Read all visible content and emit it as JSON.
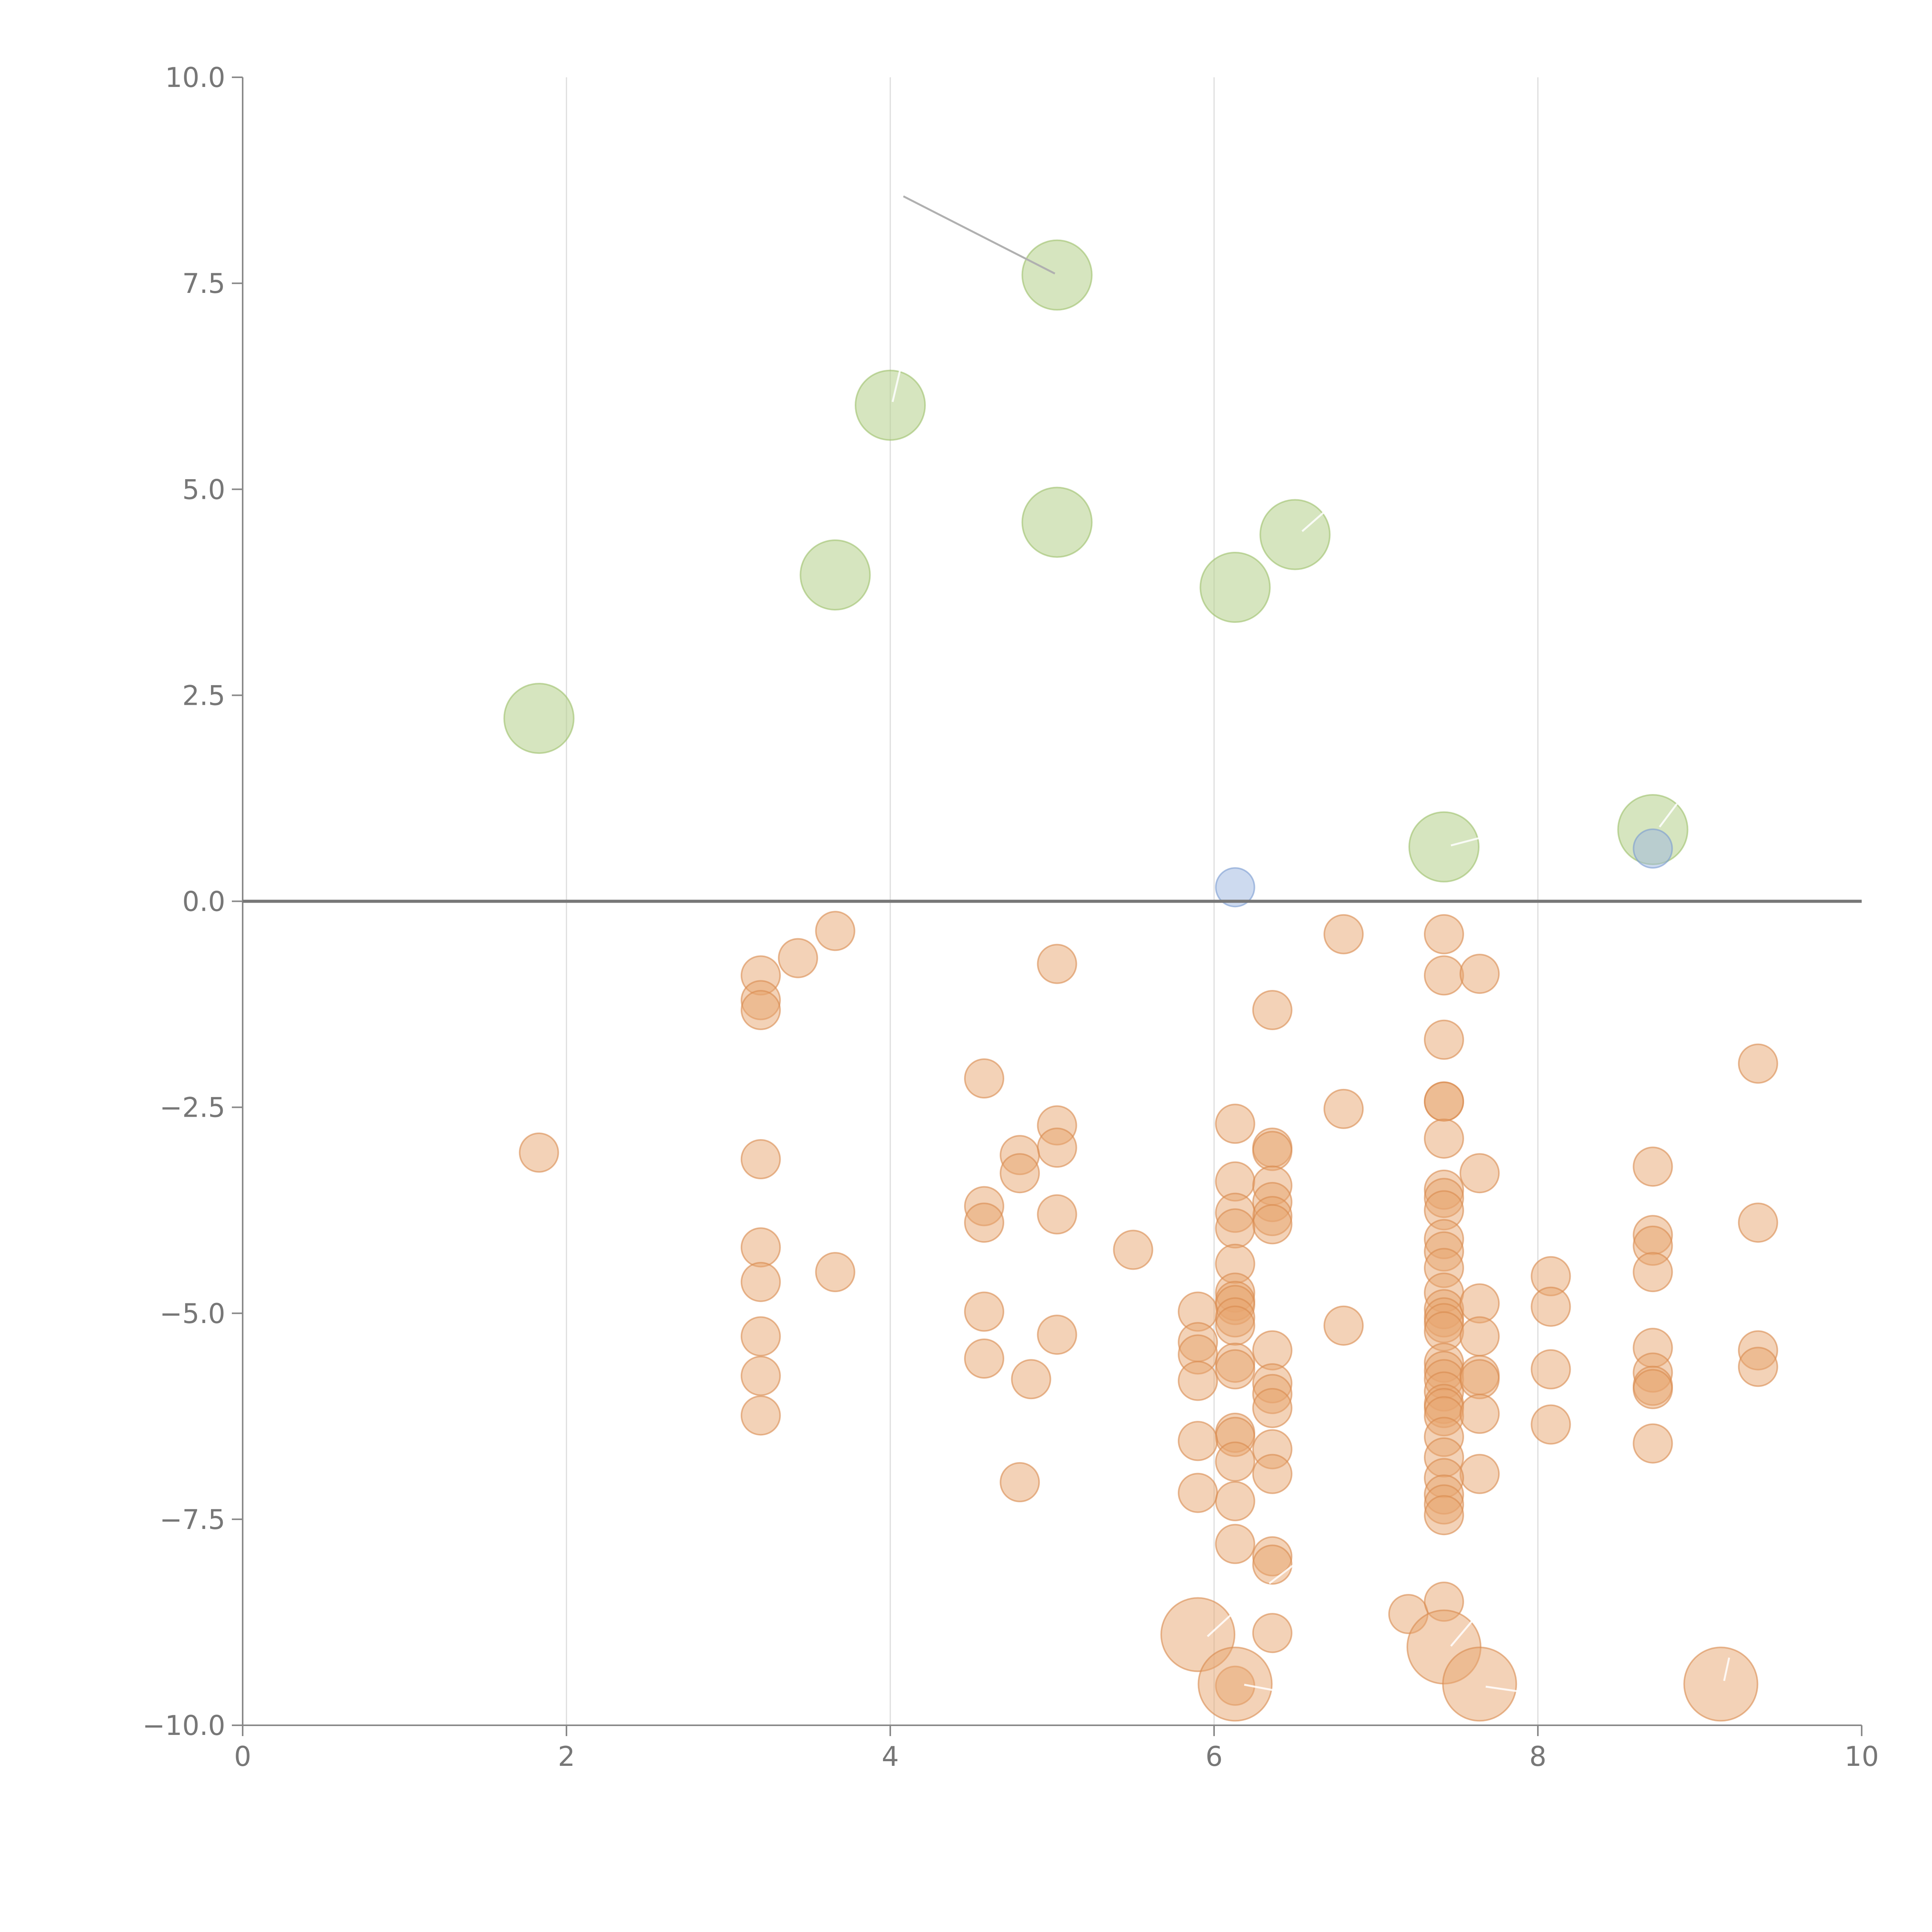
{
  "chart_data": {
    "type": "scatter",
    "title": "",
    "xlabel": "",
    "ylabel": "",
    "xlim": [
      0,
      10
    ],
    "ylim": [
      -10,
      10
    ],
    "grid": "vertical",
    "x_ticks": [
      0,
      2,
      4,
      6,
      8,
      10
    ],
    "x_tick_labels": [
      "0",
      "2",
      "4",
      "6",
      "8",
      "10"
    ],
    "y_ticks": [
      10,
      7.5,
      5,
      2.5,
      0,
      -2.5,
      -5,
      -7.5,
      -10
    ],
    "y_tick_labels": [
      "10.0",
      "7.5",
      "5.0",
      "2.5",
      "0.0",
      "−2.5",
      "−5.0",
      "−7.5",
      "−10.0"
    ],
    "series": [
      {
        "name": "green",
        "color": "#b5d08a",
        "stroke": "#9cc06a",
        "points": [
          [
            5.03,
            7.6,
            2
          ],
          [
            4.0,
            6.02,
            2
          ],
          [
            5.03,
            4.6,
            2
          ],
          [
            3.66,
            3.96,
            2
          ],
          [
            6.13,
            3.81,
            2
          ],
          [
            6.5,
            4.45,
            2
          ],
          [
            1.83,
            2.22,
            2
          ],
          [
            7.42,
            0.66,
            2
          ],
          [
            8.71,
            0.87,
            2
          ]
        ]
      },
      {
        "name": "blue",
        "color": "#9bb5df",
        "stroke": "#7a9bd0",
        "points": [
          [
            6.13,
            0.17,
            1
          ],
          [
            8.71,
            0.64,
            1
          ]
        ]
      },
      {
        "name": "orange",
        "color": "#e8a570",
        "stroke": "#d98a4e",
        "points": [
          [
            3.66,
            -0.36,
            1
          ],
          [
            3.43,
            -0.69,
            1
          ],
          [
            3.2,
            -0.9,
            1
          ],
          [
            3.2,
            -1.2,
            1
          ],
          [
            3.2,
            -1.32,
            1
          ],
          [
            5.03,
            -0.76,
            1
          ],
          [
            6.8,
            -0.4,
            1
          ],
          [
            7.42,
            -0.4,
            1
          ],
          [
            7.42,
            -0.9,
            1
          ],
          [
            7.64,
            -0.88,
            1
          ],
          [
            6.36,
            -1.32,
            1
          ],
          [
            7.42,
            -1.68,
            1
          ],
          [
            9.36,
            -1.97,
            1
          ],
          [
            4.58,
            -2.15,
            1
          ],
          [
            1.83,
            -3.05,
            1
          ],
          [
            3.2,
            -3.13,
            1
          ],
          [
            5.03,
            -2.72,
            1
          ],
          [
            5.03,
            -2.99,
            1
          ],
          [
            4.8,
            -3.08,
            1
          ],
          [
            4.8,
            -3.3,
            1
          ],
          [
            6.13,
            -2.7,
            1
          ],
          [
            6.36,
            -2.99,
            1
          ],
          [
            6.36,
            -3.03,
            1
          ],
          [
            6.8,
            -2.52,
            1
          ],
          [
            7.42,
            -2.43,
            1
          ],
          [
            7.42,
            -2.43,
            1
          ],
          [
            7.42,
            -2.88,
            1
          ],
          [
            7.64,
            -3.3,
            1
          ],
          [
            8.71,
            -3.22,
            1
          ],
          [
            6.13,
            -3.4,
            1
          ],
          [
            6.36,
            -3.45,
            1
          ],
          [
            6.36,
            -3.65,
            1
          ],
          [
            6.36,
            -3.82,
            1
          ],
          [
            6.36,
            -3.92,
            1
          ],
          [
            6.13,
            -3.78,
            1
          ],
          [
            6.13,
            -3.97,
            1
          ],
          [
            7.42,
            -3.5,
            1
          ],
          [
            7.42,
            -3.6,
            1
          ],
          [
            7.42,
            -3.75,
            1
          ],
          [
            4.58,
            -3.7,
            1
          ],
          [
            4.58,
            -3.9,
            1
          ],
          [
            5.03,
            -3.8,
            1
          ],
          [
            5.5,
            -4.23,
            1
          ],
          [
            3.2,
            -4.2,
            1
          ],
          [
            3.2,
            -4.62,
            1
          ],
          [
            3.66,
            -4.5,
            1
          ],
          [
            7.42,
            -4.1,
            1
          ],
          [
            7.42,
            -4.25,
            1
          ],
          [
            7.42,
            -4.45,
            1
          ],
          [
            8.71,
            -4.05,
            1
          ],
          [
            8.71,
            -4.18,
            1
          ],
          [
            8.71,
            -4.5,
            1
          ],
          [
            9.36,
            -3.9,
            1
          ],
          [
            8.08,
            -4.55,
            1
          ],
          [
            8.08,
            -4.92,
            1
          ],
          [
            6.13,
            -4.4,
            1
          ],
          [
            6.13,
            -4.75,
            1
          ],
          [
            6.13,
            -4.85,
            1
          ],
          [
            6.13,
            -4.9,
            1
          ],
          [
            6.13,
            -5.05,
            1
          ],
          [
            6.13,
            -5.15,
            1
          ],
          [
            7.42,
            -4.75,
            1
          ],
          [
            7.42,
            -4.95,
            1
          ],
          [
            7.42,
            -5.05,
            1
          ],
          [
            7.42,
            -5.12,
            1
          ],
          [
            7.42,
            -5.22,
            1
          ],
          [
            7.64,
            -4.88,
            1
          ],
          [
            4.58,
            -4.98,
            1
          ],
          [
            5.9,
            -4.98,
            1
          ],
          [
            6.8,
            -5.15,
            1
          ],
          [
            3.2,
            -5.28,
            1
          ],
          [
            5.03,
            -5.26,
            1
          ],
          [
            7.64,
            -5.28,
            1
          ],
          [
            5.9,
            -5.35,
            1
          ],
          [
            5.9,
            -5.5,
            1
          ],
          [
            4.58,
            -5.55,
            1
          ],
          [
            6.36,
            -5.45,
            1
          ],
          [
            6.13,
            -5.6,
            1
          ],
          [
            6.13,
            -5.68,
            1
          ],
          [
            7.42,
            -5.6,
            1
          ],
          [
            7.42,
            -5.7,
            1
          ],
          [
            7.42,
            -5.8,
            1
          ],
          [
            7.42,
            -5.95,
            1
          ],
          [
            7.64,
            -5.75,
            1
          ],
          [
            7.64,
            -5.8,
            1
          ],
          [
            8.08,
            -5.68,
            1
          ],
          [
            8.71,
            -5.42,
            1
          ],
          [
            8.71,
            -5.72,
            1
          ],
          [
            8.71,
            -5.88,
            1
          ],
          [
            8.71,
            -5.92,
            1
          ],
          [
            9.36,
            -5.45,
            1
          ],
          [
            9.36,
            -5.65,
            1
          ],
          [
            3.2,
            -5.76,
            1
          ],
          [
            4.87,
            -5.8,
            1
          ],
          [
            5.9,
            -5.82,
            1
          ],
          [
            6.36,
            -5.85,
            1
          ],
          [
            6.36,
            -5.98,
            1
          ],
          [
            7.42,
            -6.1,
            1
          ],
          [
            7.42,
            -6.15,
            1
          ],
          [
            7.42,
            -6.25,
            1
          ],
          [
            6.36,
            -6.15,
            1
          ],
          [
            3.2,
            -6.24,
            1
          ],
          [
            7.64,
            -6.22,
            1
          ],
          [
            8.08,
            -6.35,
            1
          ],
          [
            6.13,
            -6.45,
            1
          ],
          [
            6.13,
            -6.5,
            1
          ],
          [
            5.9,
            -6.55,
            1
          ],
          [
            7.42,
            -6.5,
            1
          ],
          [
            7.42,
            -6.75,
            1
          ],
          [
            6.36,
            -6.65,
            1
          ],
          [
            8.71,
            -6.58,
            1
          ],
          [
            6.13,
            -6.8,
            1
          ],
          [
            6.36,
            -6.95,
            1
          ],
          [
            7.64,
            -6.95,
            1
          ],
          [
            4.8,
            -7.05,
            1
          ],
          [
            5.9,
            -7.18,
            1
          ],
          [
            7.42,
            -7.0,
            1
          ],
          [
            7.42,
            -7.2,
            1
          ],
          [
            7.42,
            -7.32,
            1
          ],
          [
            7.42,
            -7.45,
            1
          ],
          [
            6.13,
            -7.28,
            1
          ],
          [
            6.13,
            -7.8,
            1
          ],
          [
            6.36,
            -7.95,
            1
          ],
          [
            6.36,
            -8.05,
            1
          ],
          [
            7.2,
            -8.65,
            1
          ],
          [
            7.42,
            -8.5,
            1
          ],
          [
            6.36,
            -8.88,
            1
          ],
          [
            6.13,
            -9.52,
            1
          ],
          [
            5.9,
            -8.9,
            2.6
          ],
          [
            6.13,
            -9.5,
            2.6
          ],
          [
            7.42,
            -9.05,
            2.6
          ],
          [
            7.64,
            -9.5,
            2.6
          ],
          [
            9.13,
            -9.5,
            2.6
          ]
        ]
      }
    ]
  }
}
